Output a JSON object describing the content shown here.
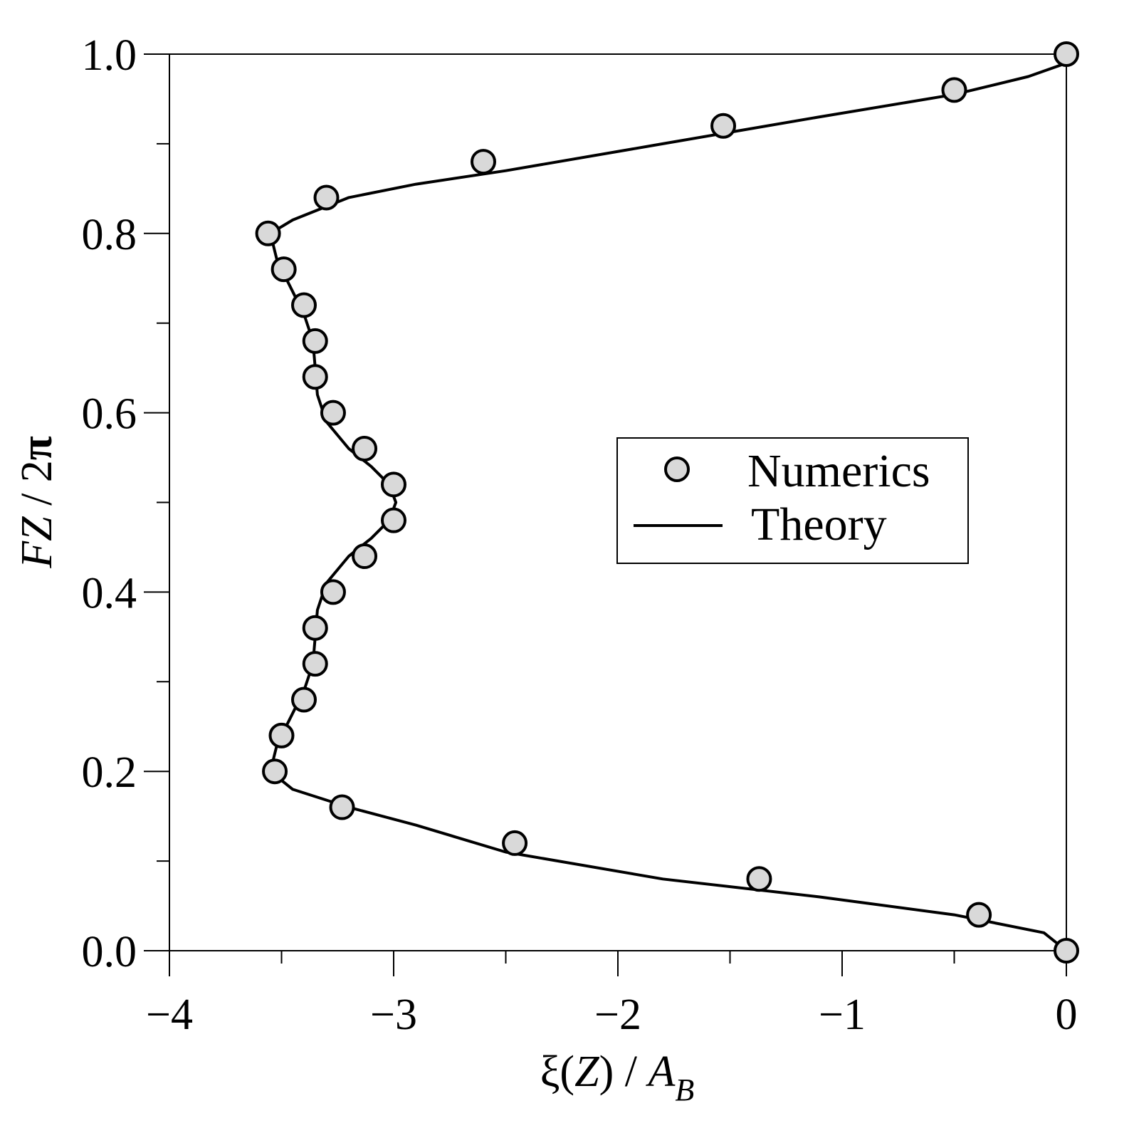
{
  "chart_data": {
    "type": "scatter",
    "title": "",
    "xlabel": {
      "greek": "ξ",
      "open": "(",
      "var": "Z",
      "close": ")",
      "sep": " / ",
      "denom": "A",
      "sub": "B"
    },
    "ylabel": {
      "num": "FZ",
      "sep": " / 2",
      "pi": "π"
    },
    "xlim": [
      -4,
      0
    ],
    "ylim": [
      0,
      1
    ],
    "xticks": [
      -4,
      -3,
      -2,
      -1,
      0
    ],
    "xtick_labels": [
      "−4",
      "−3",
      "−2",
      "−1",
      "0"
    ],
    "xminor": [
      -3.5,
      -2.5,
      -1.5,
      -0.5
    ],
    "yticks": [
      0.0,
      0.2,
      0.4,
      0.6,
      0.8,
      1.0
    ],
    "ytick_labels": [
      "0.0",
      "0.2",
      "0.4",
      "0.6",
      "0.8",
      "1.0"
    ],
    "yminor": [
      0.1,
      0.3,
      0.5,
      0.7,
      0.9
    ],
    "grid": false,
    "legend_position": "center-right",
    "series": [
      {
        "name": "Numerics",
        "kind": "markers",
        "marker_fill": "#d9d9d9",
        "marker_stroke": "#000000",
        "x": [
          0.0,
          -0.39,
          -1.37,
          -2.46,
          -3.23,
          -3.53,
          -3.5,
          -3.4,
          -3.35,
          -3.35,
          -3.27,
          -3.13,
          -3.0,
          -3.0,
          -3.13,
          -3.27,
          -3.35,
          -3.35,
          -3.4,
          -3.49,
          -3.56,
          -3.3,
          -2.6,
          -1.53,
          -0.5,
          0.0
        ],
        "y": [
          0.0,
          0.04,
          0.08,
          0.12,
          0.16,
          0.2,
          0.24,
          0.28,
          0.32,
          0.36,
          0.4,
          0.44,
          0.48,
          0.52,
          0.56,
          0.6,
          0.64,
          0.68,
          0.72,
          0.76,
          0.8,
          0.84,
          0.88,
          0.92,
          0.96,
          1.0
        ]
      },
      {
        "name": "Theory",
        "kind": "line",
        "color": "#000000",
        "x": [
          0.0,
          -0.1,
          -0.5,
          -1.1,
          -1.8,
          -2.5,
          -2.9,
          -3.2,
          -3.45,
          -3.55,
          -3.52,
          -3.46,
          -3.4,
          -3.36,
          -3.35,
          -3.34,
          -3.3,
          -3.2,
          -3.1,
          -3.02,
          -2.99,
          -3.02,
          -3.1,
          -3.2,
          -3.3,
          -3.34,
          -3.35,
          -3.36,
          -3.4,
          -3.46,
          -3.52,
          -3.55,
          -3.45,
          -3.2,
          -2.9,
          -2.5,
          -1.8,
          -1.1,
          -0.5,
          -0.17,
          0.0
        ],
        "y": [
          0.0,
          0.02,
          0.04,
          0.06,
          0.08,
          0.11,
          0.14,
          0.16,
          0.18,
          0.2,
          0.23,
          0.26,
          0.29,
          0.32,
          0.35,
          0.38,
          0.41,
          0.44,
          0.46,
          0.48,
          0.5,
          0.52,
          0.54,
          0.56,
          0.59,
          0.62,
          0.65,
          0.68,
          0.71,
          0.74,
          0.77,
          0.8,
          0.815,
          0.84,
          0.855,
          0.87,
          0.9,
          0.93,
          0.955,
          0.975,
          0.99
        ]
      }
    ]
  }
}
